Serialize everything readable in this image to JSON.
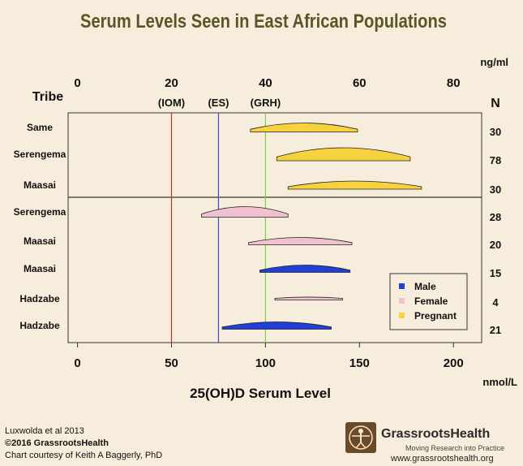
{
  "chart_data": {
    "type": "range-bar",
    "title": "Serum Levels Seen in East African Populations",
    "xlabel": "25(OH)D Serum Level",
    "x_unit_bottom": "nmol/L",
    "x_unit_top": "ng/ml",
    "xlim": [
      -5,
      215
    ],
    "bottom_ticks": [
      0,
      50,
      100,
      150,
      200
    ],
    "top_ticks": [
      0,
      20,
      40,
      60,
      80
    ],
    "top_tick_labels": [
      "0",
      "20",
      "40",
      "60",
      "80"
    ],
    "tribe_header": "Tribe",
    "n_header": "N",
    "reference_lines": [
      {
        "label": "(IOM)",
        "value": 50,
        "color": "#b03a2e"
      },
      {
        "label": "(ES)",
        "value": 75,
        "color": "#3a4fc0"
      },
      {
        "label": "(GRH)",
        "value": 100,
        "color": "#7ad04a"
      }
    ],
    "rows": [
      {
        "tribe": "Same",
        "group": "Pregnant",
        "low": 92,
        "high": 149,
        "n": "30",
        "height": 11
      },
      {
        "tribe": "Serengema",
        "group": "Pregnant",
        "low": 106,
        "high": 177,
        "n": "78",
        "height": 16
      },
      {
        "tribe": "Maasai",
        "group": "Pregnant",
        "low": 112,
        "high": 183,
        "n": "30",
        "height": 10
      },
      {
        "tribe": "Serengema",
        "group": "Female",
        "low": 66,
        "high": 112,
        "n": "28",
        "height": 13
      },
      {
        "tribe": "Maasai",
        "group": "Female",
        "low": 91,
        "high": 146,
        "n": "20",
        "height": 9
      },
      {
        "tribe": "Maasai",
        "group": "Male",
        "low": 97,
        "high": 145,
        "n": "15",
        "height": 9
      },
      {
        "tribe": "Hadzabe",
        "group": "Female",
        "low": 105,
        "high": 141,
        "n": "4",
        "height": 3
      },
      {
        "tribe": "Hadzabe",
        "group": "Male",
        "low": 77,
        "high": 135,
        "n": "21",
        "height": 9
      }
    ],
    "legend": [
      {
        "name": "Male",
        "color": "#1f3fd6"
      },
      {
        "name": "Female",
        "color": "#f0c2cf"
      },
      {
        "name": "Pregnant",
        "color": "#f5d23e"
      }
    ],
    "legend_position": "bottom-right"
  },
  "footer": {
    "citation": "Luxwolda et al 2013",
    "copyright": "©2016 GrassrootsHealth",
    "courtesy": "Chart courtesy of Keith A Baggerly, PhD"
  },
  "brand": {
    "name": "GrassrootsHealth",
    "tagline": "Moving Research into Practice",
    "url": "www.grassrootshealth.org"
  }
}
